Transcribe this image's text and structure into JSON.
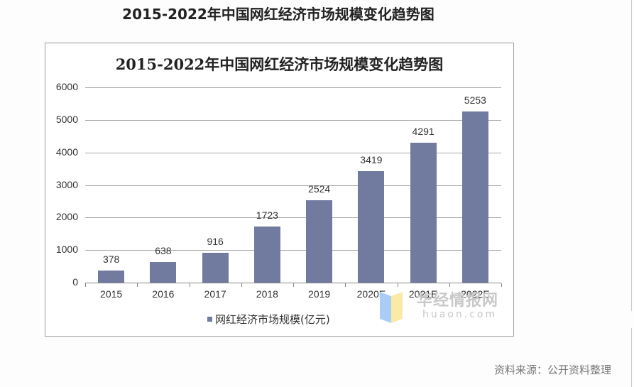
{
  "page": {
    "title": "2015-2022年中国网红经济市场规模变化趋势图",
    "source": "资料来源：公开资料整理"
  },
  "chart": {
    "title": "2015-2022年中国网红经济市场规模变化趋势图",
    "legend_label": "网红经济市场规模(亿元)",
    "bar_color": "#717b9f",
    "watermark_cn": "华经情报网",
    "watermark_en": "huaon.com"
  },
  "chart_data": {
    "type": "bar",
    "title": "2015-2022年中国网红经济市场规模变化趋势图",
    "xlabel": "",
    "ylabel": "",
    "categories": [
      "2015",
      "2016",
      "2017",
      "2018",
      "2019",
      "2020E",
      "2021E",
      "2022E"
    ],
    "series": [
      {
        "name": "网红经济市场规模(亿元)",
        "values": [
          378,
          638,
          916,
          1723,
          2524,
          3419,
          4291,
          5253
        ]
      }
    ],
    "ylim": [
      0,
      6000
    ],
    "yticks": [
      0,
      1000,
      2000,
      3000,
      4000,
      5000,
      6000
    ],
    "grid": true,
    "legend_position": "bottom",
    "data_labels": true
  }
}
